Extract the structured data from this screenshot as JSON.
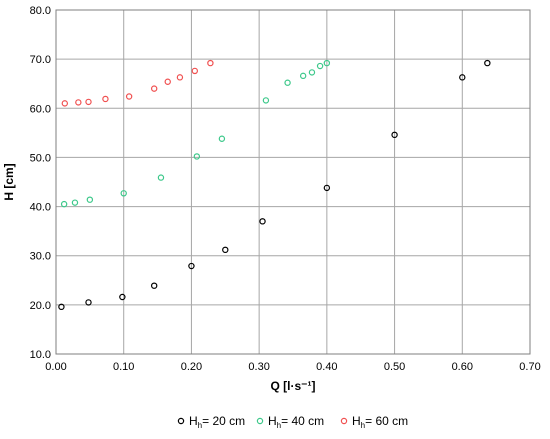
{
  "chart_data": {
    "type": "scatter",
    "xlabel": "Q [l·s⁻¹]",
    "ylabel": "H [cm]",
    "xlim": [
      0.0,
      0.7
    ],
    "ylim": [
      10.0,
      80.0
    ],
    "x_ticks": [
      "0.00",
      "0.10",
      "0.20",
      "0.30",
      "0.40",
      "0.50",
      "0.60",
      "0.70"
    ],
    "y_ticks": [
      "10.0",
      "20.0",
      "30.0",
      "40.0",
      "50.0",
      "60.0",
      "70.0",
      "80.0"
    ],
    "grid": true,
    "legend_position": "bottom",
    "series": [
      {
        "name_main": "H",
        "name_sub": "h",
        "name_rest": "= 20 cm",
        "color": "#000000",
        "x": [
          0.008,
          0.048,
          0.098,
          0.145,
          0.2,
          0.25,
          0.305,
          0.4,
          0.5,
          0.6,
          0.637
        ],
        "y": [
          19.6,
          20.5,
          21.6,
          23.9,
          27.9,
          31.2,
          37.0,
          43.8,
          54.6,
          66.3,
          69.2
        ]
      },
      {
        "name_main": "H",
        "name_sub": "h",
        "name_rest": "= 40  cm",
        "color": "#3cc88a",
        "x": [
          0.012,
          0.028,
          0.05,
          0.1,
          0.155,
          0.208,
          0.245,
          0.31,
          0.342,
          0.365,
          0.378,
          0.39,
          0.4
        ],
        "y": [
          40.5,
          40.8,
          41.4,
          42.7,
          45.9,
          50.2,
          53.8,
          61.6,
          65.2,
          66.6,
          67.3,
          68.6,
          69.2
        ]
      },
      {
        "name_main": "H",
        "name_sub": "h",
        "name_rest": "= 60 cm",
        "color": "#f05050",
        "x": [
          0.013,
          0.033,
          0.048,
          0.073,
          0.108,
          0.145,
          0.165,
          0.183,
          0.205,
          0.228
        ],
        "y": [
          61.0,
          61.2,
          61.3,
          61.9,
          62.4,
          64.0,
          65.4,
          66.3,
          67.6,
          69.2
        ]
      }
    ]
  }
}
